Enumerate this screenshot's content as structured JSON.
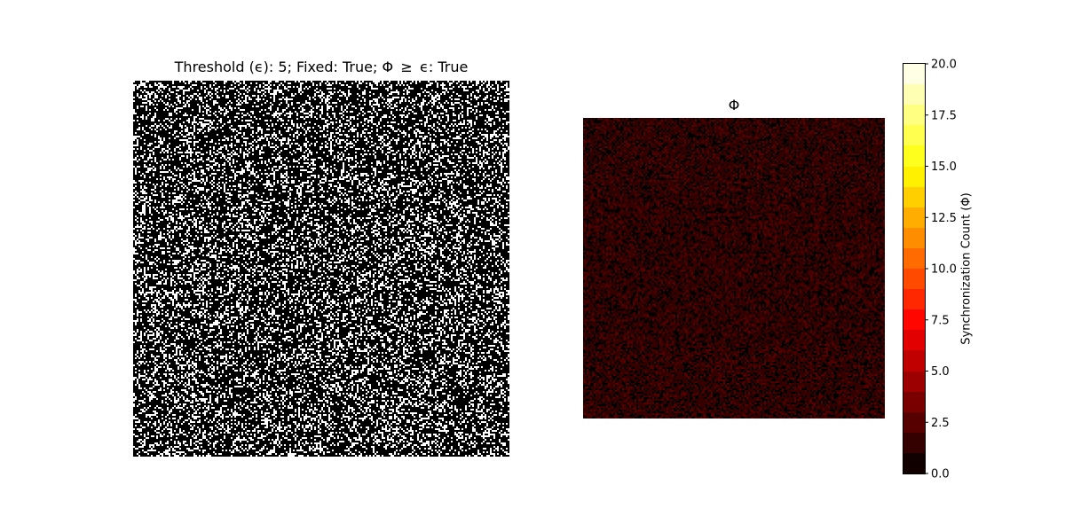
{
  "left_panel": {
    "title": "Threshold (ϵ): 5; Fixed: True; Φ  ≥  ϵ: True"
  },
  "right_panel": {
    "title": "Φ"
  },
  "colorbar": {
    "label": "Synchronization Count (Φ)",
    "colormap": "hot",
    "levels": 20,
    "vmin": 0.0,
    "vmax": 20.0,
    "ticks": [
      "0.0",
      "2.5",
      "5.0",
      "7.5",
      "10.0",
      "12.5",
      "15.0",
      "17.5",
      "20.0"
    ]
  },
  "chart_data": [
    {
      "type": "heatmap",
      "title": "Threshold (ϵ): 5; Fixed: True; Φ  ≥  ϵ: True",
      "colormap": "binary-gray",
      "approx_white_fraction": 0.28,
      "axes_visible": false
    },
    {
      "type": "heatmap",
      "title": "Φ",
      "colormap": "hot",
      "vmin": 0.0,
      "vmax": 20.0,
      "value_range_shown": [
        0,
        2
      ],
      "axes_visible": false,
      "colorbar_label": "Synchronization Count (Φ)",
      "colorbar_ticks": [
        0.0,
        2.5,
        5.0,
        7.5,
        10.0,
        12.5,
        15.0,
        17.5,
        20.0
      ]
    }
  ]
}
